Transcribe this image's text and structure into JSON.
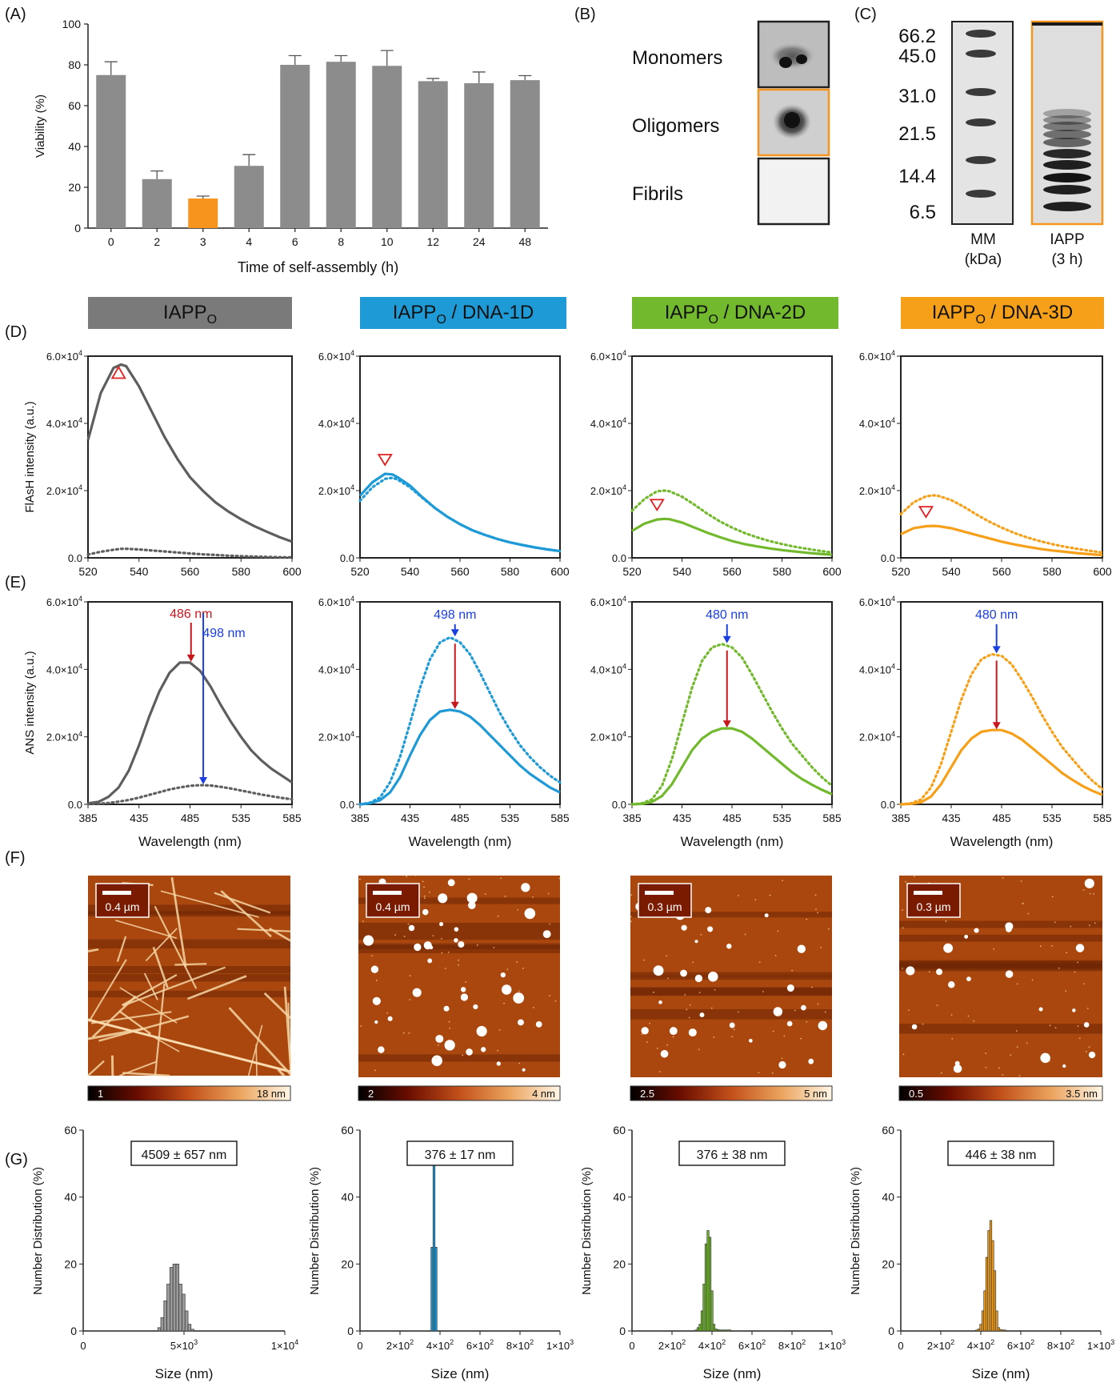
{
  "panel_letters": [
    "(A)",
    "(B)",
    "(C)",
    "(D)",
    "(E)",
    "(F)",
    "(G)"
  ],
  "colors": {
    "gray": "#6f6f6f",
    "dark": "#5e5e5e",
    "blue": "#1e9ad6",
    "green": "#72b92e",
    "orange": "#f6a01a",
    "highlight": "#f7941d",
    "red": "#c8161d",
    "arrow_blue": "#1a3fe0",
    "marker_red": "#e02020"
  },
  "panelA": {
    "categories": [
      "0",
      "2",
      "3",
      "4",
      "6",
      "8",
      "10",
      "12",
      "24",
      "48"
    ],
    "values": [
      75,
      24,
      14.5,
      30.5,
      80,
      81.5,
      79.5,
      72,
      71,
      72.5
    ],
    "errors": [
      6.5,
      4,
      1.2,
      5.5,
      4.5,
      3,
      7.5,
      1.3,
      5.5,
      2.2
    ],
    "highlight_index": 2,
    "ylim": [
      0,
      100
    ],
    "yticks": [
      "0",
      "20",
      "40",
      "60",
      "80",
      "100"
    ],
    "xlabel": "Time of self-assembly (h)",
    "ylabel": "Viability (%)"
  },
  "panelB": {
    "labels": [
      "Monomers",
      "Oligomers",
      "Fibrils"
    ]
  },
  "panelC": {
    "mw_labels": [
      "66.2",
      "45.0",
      "31.0",
      "21.5",
      "14.4",
      "6.5"
    ],
    "lane1": "MM",
    "lane1_sub": "(kDa)",
    "lane2": "IAPP",
    "lane2_sub": "(3 h)"
  },
  "headers": [
    {
      "base": "IAPP",
      "sub": "O",
      "rest": ""
    },
    {
      "base": "IAPP",
      "sub": "O",
      "rest": " / DNA-1D"
    },
    {
      "base": "IAPP",
      "sub": "O",
      "rest": " / DNA-2D"
    },
    {
      "base": "IAPP",
      "sub": "O",
      "rest": " / DNA-3D"
    }
  ],
  "panelD": {
    "ylabel": "FlAsH intensity (a.u.)",
    "xticks": [
      "520",
      "540",
      "560",
      "580",
      "600"
    ],
    "yticks": [
      "0.0",
      "2.0×10",
      "4.0×10",
      "6.0×10"
    ],
    "ytick_exp": "4"
  },
  "panelE": {
    "ylabel": "ANS intensity (a.u.)",
    "xlabel": "Wavelength (nm)",
    "xticks": [
      "385",
      "435",
      "485",
      "535",
      "585"
    ],
    "yticks": [
      "0.0",
      "2.0×10",
      "4.0×10",
      "6.0×10"
    ],
    "ytick_exp": "4",
    "annotations": [
      "486 nm",
      "498 nm",
      "480 nm",
      "480 nm",
      "480 nm"
    ]
  },
  "panelF": {
    "scalebars": [
      "0.4 µm",
      "0.4 µm",
      "0.3 µm",
      "0.3 µm"
    ],
    "colorbar_min": [
      "1",
      "2",
      "2.5",
      "0.5"
    ],
    "colorbar_max": [
      "18 nm",
      "4 nm",
      "5 nm",
      "3.5 nm"
    ]
  },
  "panelG": {
    "ylabel": "Number Distribution (%)",
    "xlabel": "Size (nm)",
    "yticks": [
      "0",
      "20",
      "40",
      "60"
    ],
    "xticks_first": [
      "0",
      "5×10",
      "1×10"
    ],
    "xticks_first_exp": [
      "",
      "3",
      "4"
    ],
    "xticks_other": [
      "0",
      "2×10",
      "4×10",
      "6×10",
      "8×10",
      "1×10"
    ],
    "xticks_other_exp": [
      "",
      "2",
      "2",
      "2",
      "2",
      "3"
    ],
    "sizes": [
      "4509 ± 657 nm",
      "376 ± 17 nm",
      "376 ± 38 nm",
      "446 ± 38 nm"
    ]
  },
  "chart_data": [
    {
      "type": "bar",
      "panel": "A",
      "categories": [
        "0",
        "2",
        "3",
        "4",
        "6",
        "8",
        "10",
        "12",
        "24",
        "48"
      ],
      "values": [
        75,
        24,
        14.5,
        30.5,
        80,
        81.5,
        79.5,
        72,
        71,
        72.5
      ],
      "errors": [
        6.5,
        4,
        1.2,
        5.5,
        4.5,
        3,
        7.5,
        1.3,
        5.5,
        2.2
      ],
      "xlabel": "Time of self-assembly (h)",
      "ylabel": "Viability (%)",
      "ylim": [
        0,
        100
      ]
    },
    {
      "type": "line",
      "panel": "D",
      "xlim": [
        520,
        600
      ],
      "ylim": [
        0,
        60000
      ],
      "ylabel": "FlAsH intensity (a.u.)",
      "x": [
        520,
        525,
        530,
        533,
        535,
        540,
        545,
        550,
        555,
        560,
        565,
        570,
        575,
        580,
        585,
        590,
        595,
        600
      ],
      "series": [
        {
          "values": [
            35000,
            49000,
            56500,
            57500,
            57000,
            51000,
            43500,
            36000,
            29500,
            24000,
            20000,
            16500,
            13800,
            11500,
            9500,
            7800,
            6200,
            4800
          ]
        },
        {
          "values": [
            1000,
            1800,
            2400,
            2700,
            2700,
            2500,
            2200,
            1900,
            1600,
            1300,
            1050,
            850,
            650,
            500,
            380,
            280,
            200,
            150
          ]
        },
        {
          "values": [
            18500,
            22500,
            25000,
            24800,
            24000,
            21500,
            18000,
            14800,
            12200,
            10000,
            8200,
            6800,
            5600,
            4600,
            3800,
            3100,
            2500,
            2000
          ]
        },
        {
          "values": [
            17000,
            21000,
            23500,
            23800,
            23300,
            21000,
            17800,
            14800,
            12200,
            10000,
            8200,
            6800,
            5600,
            4600,
            3800,
            3100,
            2500,
            2000
          ]
        },
        {
          "values": [
            8000,
            10200,
            11400,
            11600,
            11500,
            10500,
            9000,
            7500,
            6200,
            5000,
            4100,
            3400,
            2800,
            2300,
            1900,
            1500,
            1200,
            900
          ]
        },
        {
          "values": [
            14000,
            17500,
            19800,
            20000,
            19800,
            18200,
            15800,
            13200,
            10900,
            9000,
            7400,
            6100,
            5000,
            4100,
            3300,
            2700,
            2100,
            1600
          ]
        },
        {
          "values": [
            7000,
            8800,
            9400,
            9500,
            9400,
            8800,
            7800,
            6800,
            5800,
            4800,
            4000,
            3300,
            2700,
            2200,
            1800,
            1400,
            1100,
            800
          ]
        },
        {
          "values": [
            13000,
            16500,
            18300,
            18600,
            18400,
            17200,
            15200,
            12900,
            10800,
            9000,
            7400,
            6100,
            5000,
            4100,
            3300,
            2700,
            2100,
            1600
          ]
        }
      ]
    },
    {
      "type": "line",
      "panel": "E",
      "xlim": [
        385,
        585
      ],
      "ylim": [
        0,
        60000
      ],
      "xlabel": "Wavelength (nm)",
      "ylabel": "ANS intensity (a.u.)",
      "x": [
        385,
        395,
        405,
        415,
        425,
        435,
        445,
        455,
        465,
        475,
        485,
        495,
        505,
        515,
        525,
        535,
        545,
        555,
        565,
        575,
        585
      ],
      "series": [
        {
          "values": [
            300,
            700,
            2200,
            5000,
            10000,
            17500,
            26000,
            33500,
            39000,
            42000,
            42000,
            39500,
            35000,
            29500,
            24500,
            20000,
            16000,
            13000,
            10500,
            8500,
            6500
          ]
        },
        {
          "values": [
            100,
            200,
            400,
            800,
            1300,
            2000,
            2800,
            3600,
            4400,
            5000,
            5500,
            5700,
            5600,
            5200,
            4700,
            4100,
            3500,
            2900,
            2400,
            1900,
            1500
          ]
        },
        {
          "values": [
            0,
            300,
            1200,
            3500,
            8000,
            14500,
            20500,
            25000,
            27500,
            28000,
            27500,
            26000,
            23500,
            20500,
            17500,
            14500,
            11500,
            9000,
            7000,
            5000,
            3500
          ]
        },
        {
          "values": [
            0,
            500,
            2000,
            6500,
            14000,
            24000,
            34500,
            43000,
            48000,
            49500,
            48000,
            44500,
            39000,
            33000,
            27000,
            22000,
            17500,
            14000,
            11000,
            8500,
            6500
          ]
        },
        {
          "values": [
            0,
            150,
            700,
            2500,
            6000,
            11000,
            16000,
            19500,
            21500,
            22500,
            22500,
            21500,
            19500,
            17000,
            14500,
            12000,
            9500,
            7500,
            5800,
            4300,
            3000
          ]
        },
        {
          "values": [
            0,
            300,
            1500,
            5500,
            13500,
            24000,
            34500,
            42500,
            46500,
            47500,
            46500,
            43500,
            38500,
            33000,
            27500,
            22500,
            18000,
            14500,
            11000,
            8000,
            5500
          ]
        },
        {
          "values": [
            0,
            150,
            600,
            2300,
            6000,
            11000,
            16000,
            19500,
            21500,
            22000,
            22000,
            21000,
            19200,
            16800,
            14300,
            11800,
            9300,
            7300,
            5500,
            4000,
            2800
          ]
        },
        {
          "values": [
            0,
            300,
            1400,
            5000,
            12000,
            21500,
            31000,
            38500,
            43000,
            44500,
            44000,
            41500,
            37000,
            32000,
            26500,
            21500,
            17000,
            13500,
            10000,
            7000,
            4500
          ]
        }
      ]
    },
    {
      "type": "bar",
      "panel": "G",
      "ylabel": "Number Distribution (%)",
      "xlabel": "Size (nm)",
      "ylim": [
        0,
        60
      ],
      "series": [
        {
          "xlim": [
            0,
            10000
          ],
          "bin_centers": [
            3775,
            3925,
            4075,
            4225,
            4375,
            4525,
            4675,
            4825,
            4975,
            5125,
            5275,
            5425
          ],
          "values": [
            1,
            4,
            9,
            14,
            19,
            20,
            20,
            14,
            11,
            6,
            2,
            0.5
          ]
        },
        {
          "xlim": [
            0,
            1000
          ],
          "bin_centers": [
            360,
            370,
            380,
            390
          ],
          "values": [
            25,
            50,
            25,
            0
          ]
        },
        {
          "xlim": [
            0,
            1000
          ],
          "bin_centers": [
            320,
            330,
            340,
            350,
            360,
            370,
            380,
            390,
            400,
            410,
            420,
            430,
            440,
            450,
            460,
            470,
            480,
            490
          ],
          "values": [
            0.3,
            1,
            2,
            6,
            14,
            26,
            30,
            28,
            12,
            2,
            0.6,
            0.4,
            0.3,
            0.3,
            0.3,
            0.3,
            0.3,
            0.3
          ]
        },
        {
          "xlim": [
            0,
            1000
          ],
          "bin_centers": [
            380,
            390,
            400,
            410,
            420,
            430,
            440,
            450,
            460,
            470,
            480,
            490,
            500,
            510,
            520
          ],
          "values": [
            0.3,
            0.6,
            2,
            6,
            12,
            22,
            30,
            33,
            27,
            18,
            6,
            1,
            0.4,
            0.3,
            0.3
          ]
        }
      ]
    }
  ]
}
